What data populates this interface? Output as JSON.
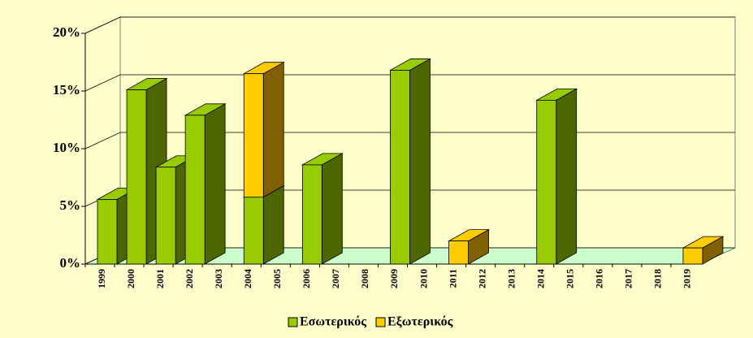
{
  "chart_data": {
    "type": "bar3d",
    "stacked": true,
    "categories": [
      "1999",
      "2000",
      "2001",
      "2002",
      "2003",
      "2004",
      "2005",
      "2006",
      "2007",
      "2008",
      "2009",
      "2010",
      "2011",
      "2012",
      "2013",
      "2014",
      "2015",
      "2016",
      "2017",
      "2018",
      "2019"
    ],
    "series": [
      {
        "name": "Εσωτερικός",
        "color": "#99cc00",
        "side_color": "#4d6600",
        "values": [
          5.6,
          15.1,
          8.4,
          12.9,
          null,
          5.8,
          null,
          8.6,
          null,
          null,
          16.8,
          null,
          null,
          null,
          null,
          14.2,
          null,
          null,
          null,
          null,
          null
        ]
      },
      {
        "name": "Εξωτερικός",
        "color": "#ffcc00",
        "side_color": "#806000",
        "values": [
          null,
          null,
          null,
          null,
          null,
          10.7,
          null,
          null,
          null,
          null,
          null,
          null,
          2.0,
          null,
          null,
          null,
          null,
          null,
          null,
          null,
          1.4
        ]
      }
    ],
    "ylim": [
      0,
      20
    ],
    "yticks": [
      {
        "value": 0,
        "label": "0%"
      },
      {
        "value": 5,
        "label": "5%"
      },
      {
        "value": 10,
        "label": "10%"
      },
      {
        "value": 15,
        "label": "15%"
      },
      {
        "value": 20,
        "label": "20%"
      }
    ],
    "grid": true,
    "legend": "bottom"
  }
}
